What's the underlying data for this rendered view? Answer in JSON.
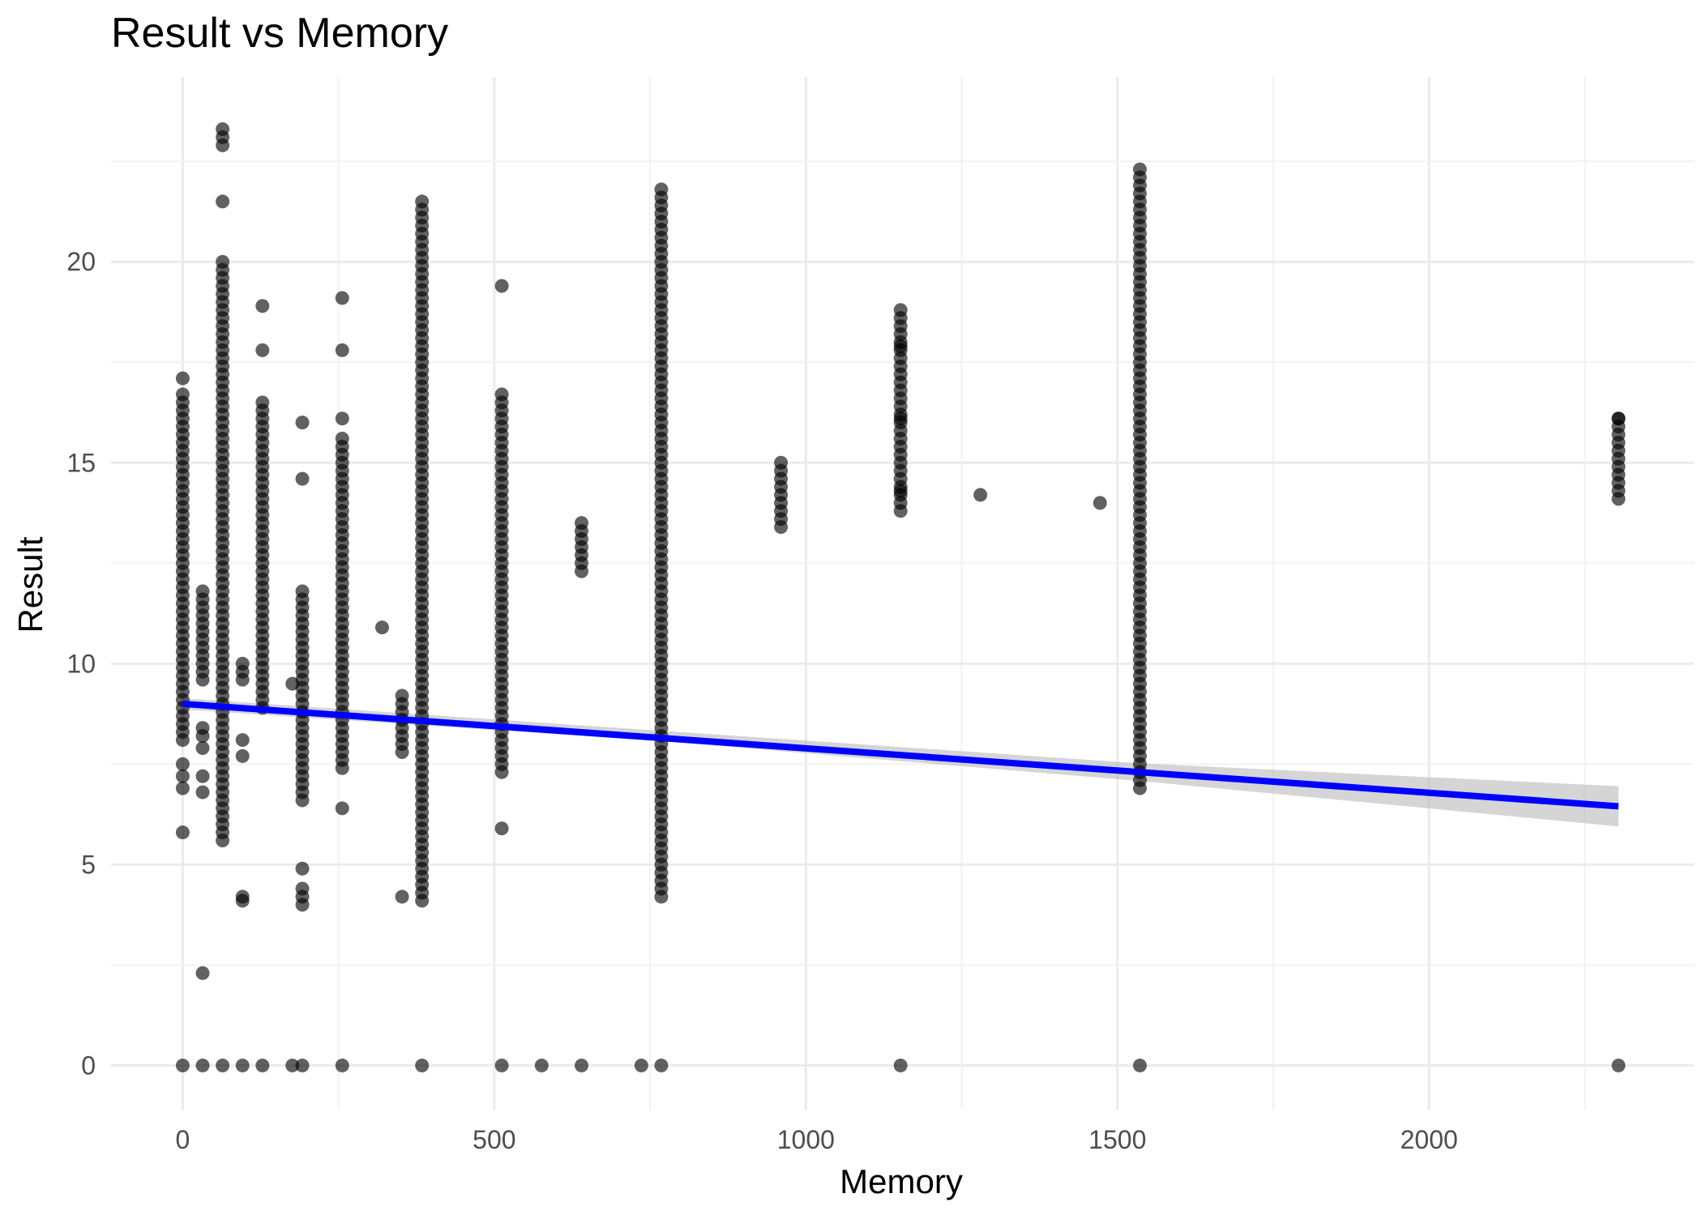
{
  "chart_data": {
    "type": "scatter",
    "title": "Result vs Memory",
    "xlabel": "Memory",
    "ylabel": "Result",
    "xlim": [
      -115,
      2425
    ],
    "ylim": [
      -1.1,
      24.6
    ],
    "x_ticks": [
      0,
      500,
      1000,
      1500,
      2000
    ],
    "y_ticks": [
      0,
      5,
      10,
      15,
      20
    ],
    "grid": true,
    "colors": {
      "points": "#000000",
      "fit_line": "#0000ff",
      "confidence_band": "#b3b3b3"
    },
    "columns": [
      {
        "x": 0,
        "y_min": 8.1,
        "y_max": 16.8,
        "extra": [
          17.1,
          7.5,
          7.2,
          6.9,
          5.8,
          0
        ]
      },
      {
        "x": 32,
        "y_min": 9.6,
        "y_max": 11.9,
        "extra": [
          8.4,
          8.2,
          7.9,
          7.2,
          6.8,
          2.3,
          0
        ]
      },
      {
        "x": 64,
        "y_min": 5.6,
        "y_max": 20.1,
        "extra": [
          21.5,
          22.9,
          23.1,
          23.3,
          0
        ]
      },
      {
        "x": 96,
        "y_min": 9.6,
        "y_max": 10.1,
        "extra": [
          8.1,
          7.7,
          4.2,
          4.1,
          0
        ]
      },
      {
        "x": 128,
        "y_min": 8.9,
        "y_max": 16.5,
        "extra": [
          17.8,
          18.9,
          0
        ]
      },
      {
        "x": 176,
        "y_min": 9.5,
        "y_max": 9.5,
        "extra": [
          0
        ]
      },
      {
        "x": 192,
        "y_min": 6.6,
        "y_max": 11.8,
        "extra": [
          16.0,
          14.6,
          4.9,
          4.4,
          4.2,
          4.0,
          0
        ]
      },
      {
        "x": 256,
        "y_min": 7.4,
        "y_max": 15.7,
        "extra": [
          16.1,
          17.8,
          19.1,
          6.4,
          0
        ]
      },
      {
        "x": 320,
        "y_min": 10.9,
        "y_max": 10.9,
        "extra": []
      },
      {
        "x": 352,
        "y_min": 7.8,
        "y_max": 9.2,
        "extra": [
          4.2
        ]
      },
      {
        "x": 384,
        "y_min": 4.1,
        "y_max": 21.6,
        "extra": [
          0
        ]
      },
      {
        "x": 512,
        "y_min": 7.3,
        "y_max": 16.7,
        "extra": [
          19.4,
          5.9,
          0
        ]
      },
      {
        "x": 576,
        "y_min": 0,
        "y_max": 0,
        "extra": []
      },
      {
        "x": 640,
        "y_min": 12.3,
        "y_max": 13.6,
        "extra": [
          0
        ]
      },
      {
        "x": 736,
        "y_min": 0,
        "y_max": 0,
        "extra": []
      },
      {
        "x": 768,
        "y_min": 4.2,
        "y_max": 21.8,
        "extra": [
          0
        ]
      },
      {
        "x": 960,
        "y_min": 13.4,
        "y_max": 15.0,
        "extra": []
      },
      {
        "x": 1152,
        "y_min": 13.8,
        "y_max": 18.9,
        "extra": [
          17.9,
          16.1,
          14.3,
          0
        ]
      },
      {
        "x": 1280,
        "y_min": 14.2,
        "y_max": 14.2,
        "extra": []
      },
      {
        "x": 1472,
        "y_min": 14.0,
        "y_max": 14.0,
        "extra": []
      },
      {
        "x": 1536,
        "y_min": 6.9,
        "y_max": 22.4,
        "extra": [
          0
        ]
      },
      {
        "x": 2304,
        "y_min": 14.1,
        "y_max": 16.2,
        "extra": [
          16.1,
          0
        ]
      }
    ],
    "trend_line": {
      "type": "linear",
      "x": [
        0,
        2304
      ],
      "y": [
        9.0,
        6.45
      ],
      "confidence_band": {
        "x": [
          0,
          768,
          1536,
          2304
        ],
        "lower": [
          8.86,
          8.07,
          7.08,
          5.95
        ],
        "upper": [
          9.14,
          8.33,
          7.52,
          6.95
        ]
      }
    }
  }
}
